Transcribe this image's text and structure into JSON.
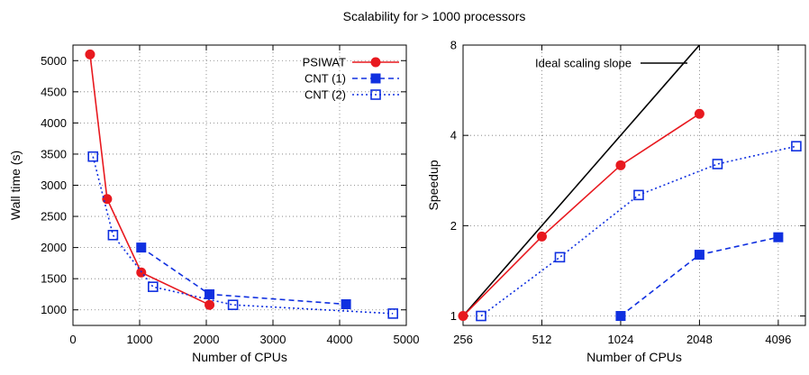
{
  "figure": {
    "title": "Scalability for > 1000 processors"
  },
  "chart_data": [
    {
      "type": "line",
      "xlabel": "Number of CPUs",
      "ylabel": "Wall time (s)",
      "xlim": [
        0,
        5000
      ],
      "ylim": [
        750,
        5250
      ],
      "xticks": [
        0,
        1000,
        2000,
        3000,
        4000,
        5000
      ],
      "yticks": [
        1000,
        1500,
        2000,
        2500,
        3000,
        3500,
        4000,
        4500,
        5000
      ],
      "grid": true,
      "legend_position": "top-right",
      "series": [
        {
          "name": "PSIWAT",
          "color": "#e8191f",
          "marker": "filled-circle",
          "line": "solid",
          "x": [
            256,
            512,
            1024,
            2048
          ],
          "y": [
            5100,
            2780,
            1600,
            1080
          ]
        },
        {
          "name": "CNT (1)",
          "color": "#1030e0",
          "marker": "filled-square",
          "line": "dashed",
          "x": [
            1024,
            2048,
            4096
          ],
          "y": [
            2000,
            1250,
            1090
          ]
        },
        {
          "name": "CNT (2)",
          "color": "#1030e0",
          "marker": "open-square",
          "line": "dotted",
          "x": [
            300,
            600,
            1200,
            2400,
            4800
          ],
          "y": [
            3460,
            2200,
            1370,
            1080,
            940
          ]
        }
      ]
    },
    {
      "type": "line",
      "xlabel": "Number of CPUs",
      "ylabel": "Speedup",
      "xscale": "log2",
      "yscale": "log2",
      "xlim": [
        256,
        5200
      ],
      "ylim": [
        0.93,
        8
      ],
      "xticks": [
        256,
        512,
        1024,
        2048,
        4096
      ],
      "yticks": [
        1,
        2,
        4,
        8
      ],
      "grid": true,
      "legend_position": "top-left",
      "series": [
        {
          "name": "Ideal scaling slope",
          "color": "#000000",
          "marker": "none",
          "line": "solid",
          "x": [
            256,
            2048
          ],
          "y": [
            1,
            8
          ]
        },
        {
          "name": "",
          "color": "#e8191f",
          "marker": "filled-circle",
          "line": "solid",
          "x": [
            256,
            512,
            1024,
            2048
          ],
          "y": [
            1,
            1.84,
            3.18,
            4.72
          ]
        },
        {
          "name": "",
          "color": "#1030e0",
          "marker": "open-square",
          "line": "dotted",
          "x": [
            300,
            600,
            1200,
            2400,
            4800
          ],
          "y": [
            1,
            1.57,
            2.53,
            3.21,
            3.68
          ]
        },
        {
          "name": "",
          "color": "#1030e0",
          "marker": "filled-square",
          "line": "dashed",
          "x": [
            1024,
            2048,
            4096
          ],
          "y": [
            1,
            1.6,
            1.83
          ]
        }
      ]
    }
  ]
}
